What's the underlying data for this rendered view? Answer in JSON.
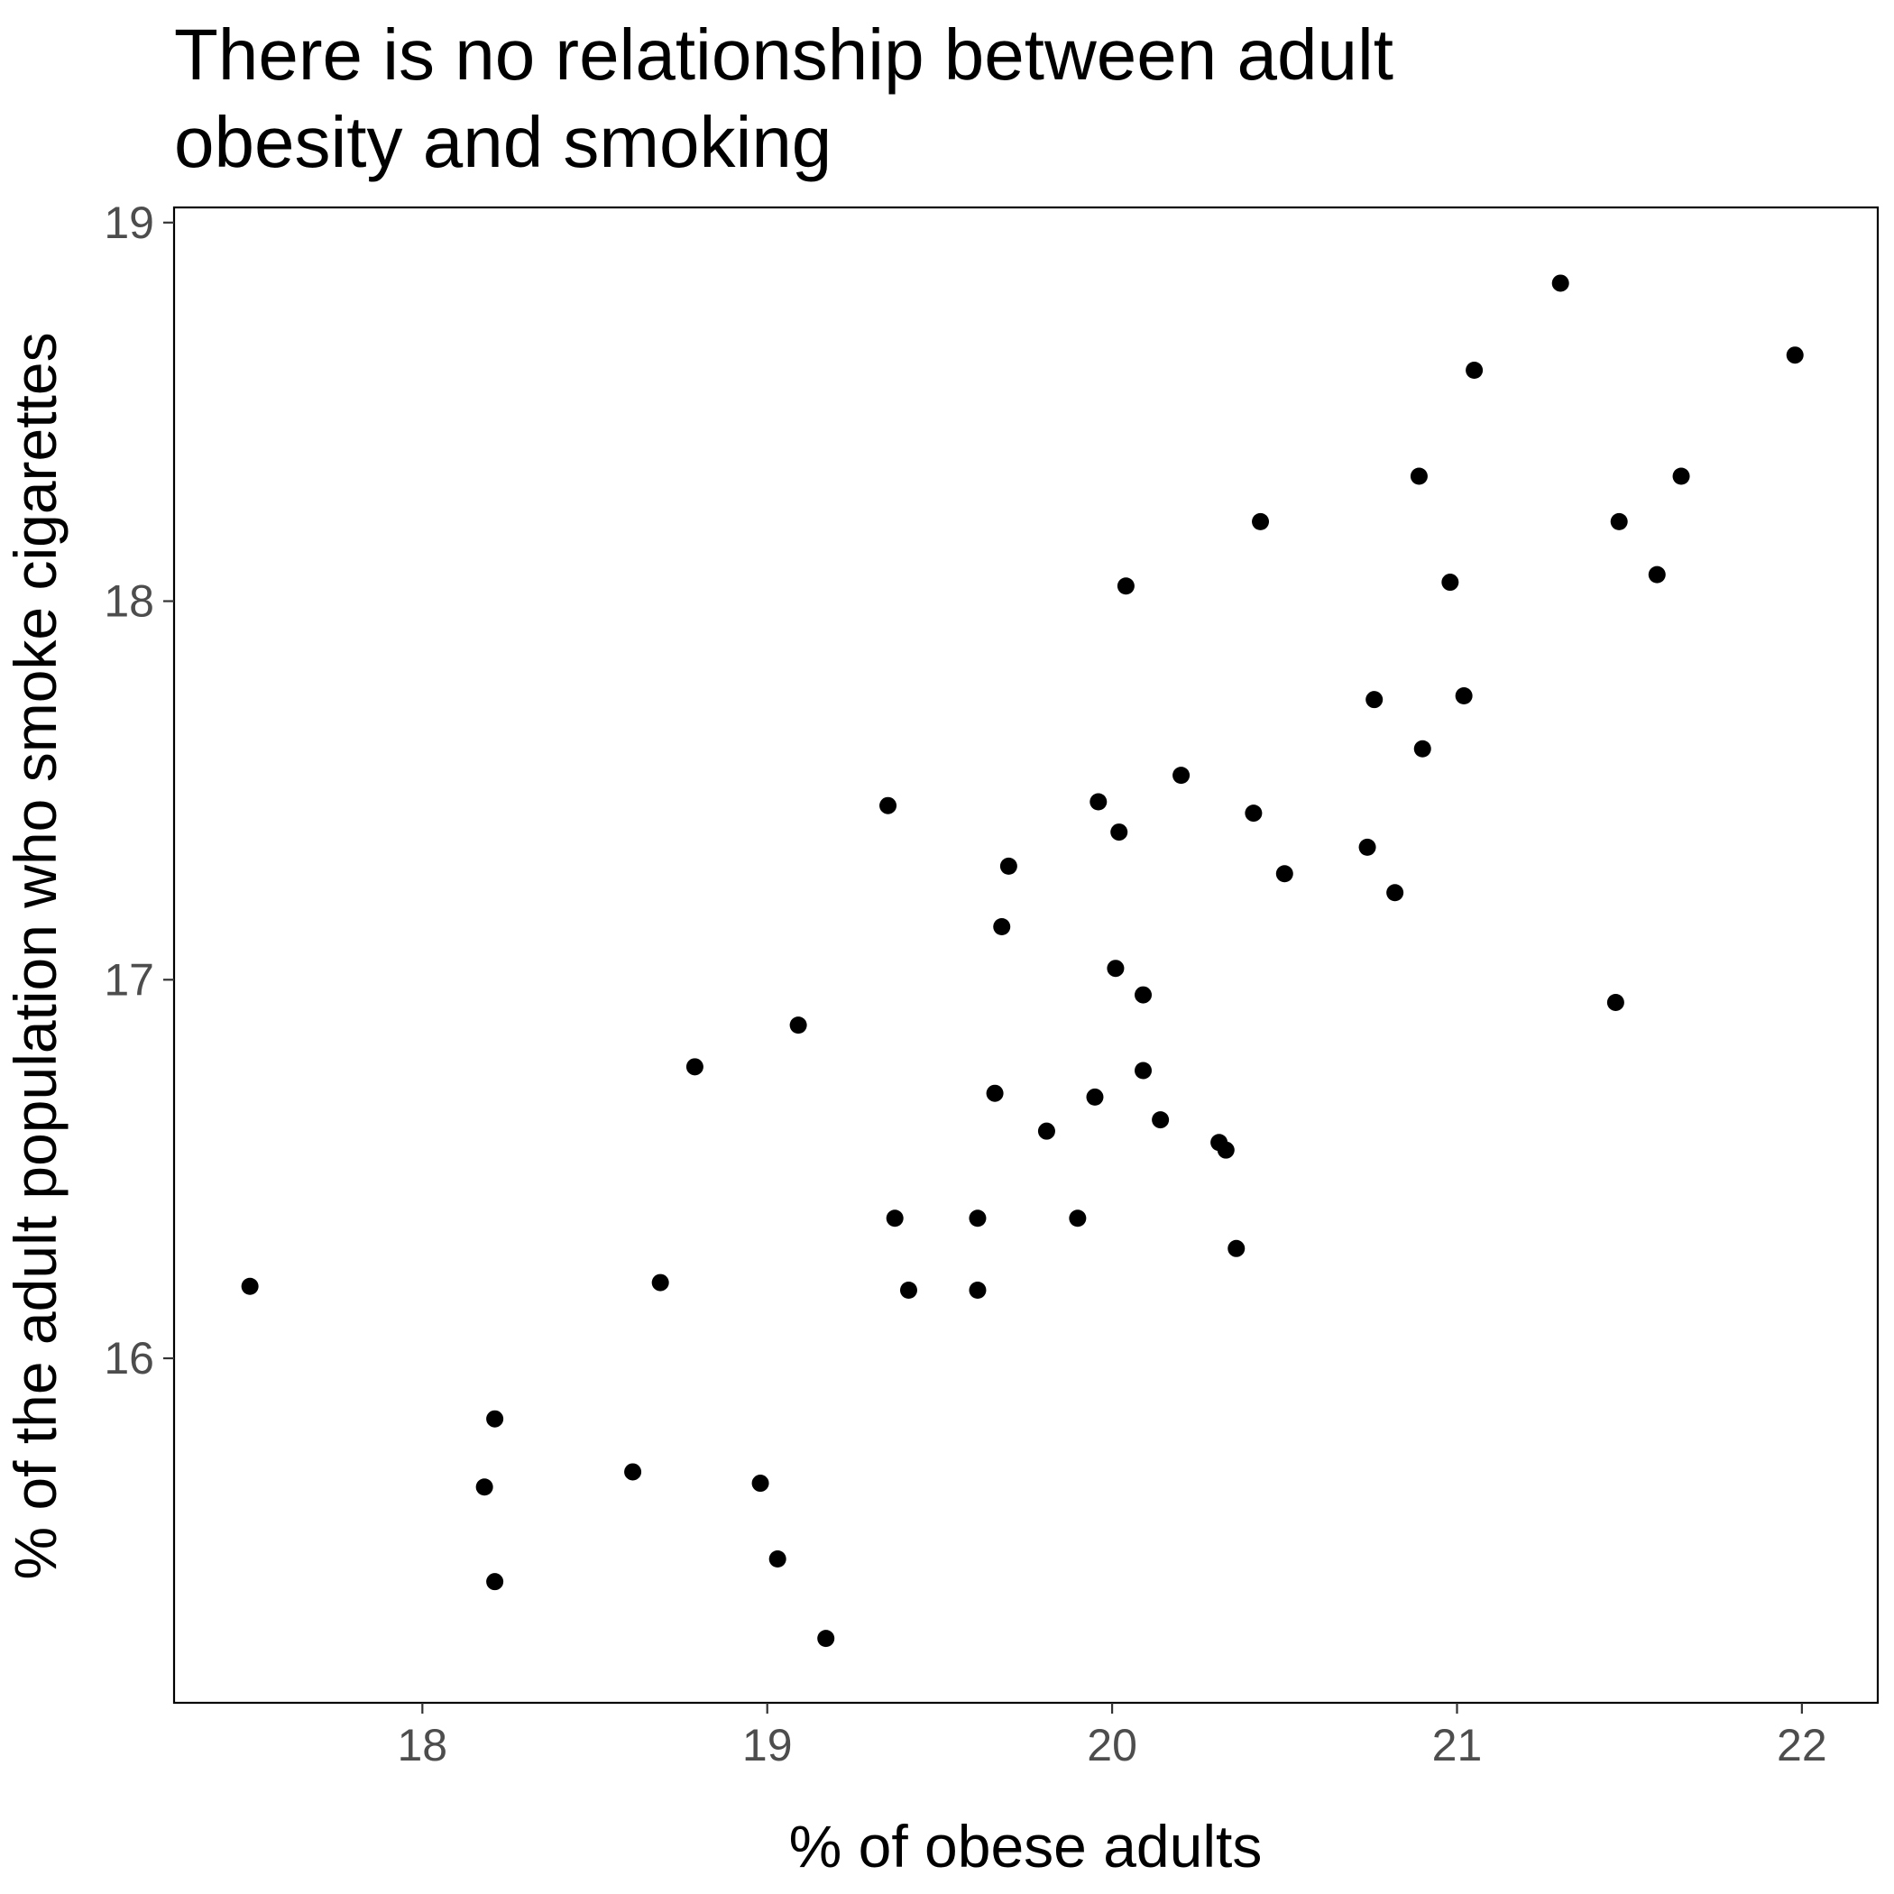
{
  "chart_data": {
    "type": "scatter",
    "title": "There is no relationship between adult obesity and smoking",
    "title_lines": [
      "There is no relationship between adult",
      "obesity and smoking"
    ],
    "xlabel": "% of obese adults",
    "ylabel": "% of the adult population who smoke cigarettes",
    "xlim": [
      17.28,
      22.22
    ],
    "ylim": [
      15.09,
      19.04
    ],
    "xticks": [
      18,
      19,
      20,
      21,
      22
    ],
    "yticks": [
      16,
      17,
      18,
      19
    ],
    "grid": false,
    "series": [
      {
        "points": [
          [
            17.5,
            16.19
          ],
          [
            18.21,
            15.84
          ],
          [
            18.18,
            15.66
          ],
          [
            18.21,
            15.41
          ],
          [
            18.61,
            15.7
          ],
          [
            18.69,
            16.2
          ],
          [
            18.79,
            16.77
          ],
          [
            18.98,
            15.67
          ],
          [
            19.03,
            15.47
          ],
          [
            19.09,
            16.88
          ],
          [
            19.17,
            15.26
          ],
          [
            19.35,
            17.46
          ],
          [
            19.37,
            16.37
          ],
          [
            19.41,
            16.18
          ],
          [
            19.61,
            16.37
          ],
          [
            19.61,
            16.18
          ],
          [
            19.66,
            16.7
          ],
          [
            19.68,
            17.14
          ],
          [
            19.7,
            17.3
          ],
          [
            19.81,
            16.6
          ],
          [
            19.9,
            16.37
          ],
          [
            19.95,
            16.69
          ],
          [
            19.96,
            17.47
          ],
          [
            20.01,
            17.03
          ],
          [
            20.02,
            17.39
          ],
          [
            20.04,
            18.04
          ],
          [
            20.09,
            16.96
          ],
          [
            20.09,
            16.76
          ],
          [
            20.14,
            16.63
          ],
          [
            20.2,
            17.54
          ],
          [
            20.31,
            16.57
          ],
          [
            20.33,
            16.55
          ],
          [
            20.36,
            16.29
          ],
          [
            20.41,
            17.44
          ],
          [
            20.43,
            18.21
          ],
          [
            20.5,
            17.28
          ],
          [
            20.74,
            17.35
          ],
          [
            20.76,
            17.74
          ],
          [
            20.82,
            17.23
          ],
          [
            20.89,
            18.33
          ],
          [
            20.9,
            17.61
          ],
          [
            20.98,
            18.05
          ],
          [
            21.02,
            17.75
          ],
          [
            21.05,
            18.61
          ],
          [
            21.3,
            18.84
          ],
          [
            21.46,
            16.94
          ],
          [
            21.47,
            18.21
          ],
          [
            21.58,
            18.07
          ],
          [
            21.65,
            18.33
          ],
          [
            21.98,
            18.65
          ]
        ]
      }
    ]
  }
}
